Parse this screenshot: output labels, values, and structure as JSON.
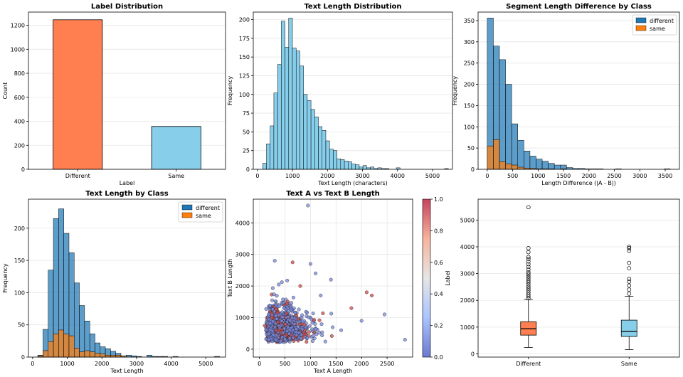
{
  "colors": {
    "orange_red": "#ff7f50",
    "sky": "#87ceeb",
    "blue": "#1f77b4",
    "orange": "#ff7f0e",
    "cmap_low": "#3b4cc0",
    "cmap_mid": "#dddddd",
    "cmap_high": "#b40426"
  },
  "chart_data": [
    {
      "id": "label-dist",
      "type": "bar",
      "title": "Label Distribution",
      "xlabel": "Label",
      "ylabel": "Count",
      "categories": [
        "Different",
        "Same"
      ],
      "values": [
        1246,
        357
      ],
      "bar_colors": [
        "#ff7f50",
        "#87ceeb"
      ],
      "ylim": [
        0,
        1310
      ],
      "yticks": [
        0,
        200,
        400,
        600,
        800,
        1000,
        1200
      ]
    },
    {
      "id": "text-length-dist",
      "type": "histogram",
      "title": "Text Length Distribution",
      "xlabel": "Text Length (characters)",
      "ylabel": "Frequency",
      "bin_start": 150,
      "bin_width": 106,
      "counts": [
        8,
        34,
        58,
        102,
        140,
        198,
        163,
        202,
        162,
        158,
        138,
        100,
        92,
        80,
        70,
        57,
        52,
        38,
        27,
        25,
        14,
        13,
        11,
        10,
        7,
        6,
        3,
        5,
        2,
        3,
        1,
        2,
        1,
        1,
        0,
        0,
        2,
        0,
        0,
        0,
        0,
        0,
        0,
        0,
        0,
        0,
        0,
        0,
        0,
        1
      ],
      "color": "#87ceeb",
      "xlim": [
        -120,
        5570
      ],
      "ylim": [
        0,
        210
      ],
      "xticks": [
        0,
        1000,
        2000,
        3000,
        4000,
        5000
      ],
      "yticks": [
        0,
        25,
        50,
        75,
        100,
        125,
        150,
        175,
        200
      ]
    },
    {
      "id": "segment-diff",
      "type": "histogram",
      "title": "Segment Length Difference by Class",
      "xlabel": "Length Difference (|A - B|)",
      "ylabel": "Frequency",
      "bin_start": 0,
      "bin_width": 120,
      "series": [
        {
          "name": "different",
          "color": "#1f77b4",
          "counts": [
            356,
            290,
            258,
            200,
            107,
            68,
            43,
            31,
            24,
            19,
            14,
            10,
            10,
            4,
            2,
            2,
            1,
            1,
            1,
            0,
            0,
            1,
            0,
            0,
            0,
            0,
            0,
            0,
            0,
            1
          ]
        },
        {
          "name": "same",
          "color": "#ff7f0e",
          "counts": [
            55,
            70,
            18,
            13,
            10,
            5,
            3,
            2,
            1,
            1,
            1,
            0,
            1
          ]
        }
      ],
      "legend": "top-right",
      "xlim": [
        -180,
        3780
      ],
      "ylim": [
        0,
        370
      ],
      "xticks": [
        0,
        500,
        1000,
        1500,
        2000,
        2500,
        3000,
        3500
      ],
      "yticks": [
        0,
        50,
        100,
        150,
        200,
        250,
        300,
        350
      ]
    },
    {
      "id": "text-length-by-class",
      "type": "histogram",
      "title": "Text Length by Class",
      "xlabel": "Text Length",
      "ylabel": "Frequency",
      "bin_start": 150,
      "bin_width": 150,
      "series": [
        {
          "name": "different",
          "color": "#1f77b4",
          "counts": [
            3,
            43,
            135,
            215,
            230,
            192,
            162,
            115,
            80,
            56,
            36,
            22,
            16,
            13,
            9,
            6,
            2,
            3,
            2,
            1,
            0,
            3,
            1,
            1,
            1,
            0,
            0,
            0,
            0,
            0,
            0,
            0,
            0,
            0,
            1
          ]
        },
        {
          "name": "same",
          "color": "#ff7f0e",
          "counts": [
            2,
            10,
            24,
            36,
            42,
            36,
            33,
            14,
            8,
            10,
            8,
            6,
            5,
            3,
            3,
            3,
            2,
            0,
            0,
            0,
            0,
            0,
            0,
            0,
            0,
            0,
            1
          ]
        }
      ],
      "legend": "top-right",
      "xlim": [
        -120,
        5570
      ],
      "ylim": [
        0,
        245
      ],
      "xticks": [
        0,
        1000,
        2000,
        3000,
        4000,
        5000
      ],
      "yticks": [
        0,
        50,
        100,
        150,
        200
      ]
    },
    {
      "id": "scatter-ab",
      "type": "scatter",
      "title": "Text A vs Text B Length",
      "xlabel": "Text A Length",
      "ylabel": "Text B Length",
      "xlim": [
        -120,
        3000
      ],
      "ylim": [
        -250,
        4750
      ],
      "xticks": [
        0,
        500,
        1000,
        1500,
        2000,
        2500
      ],
      "yticks": [
        0,
        1000,
        2000,
        3000,
        4000
      ],
      "cmap": "coolwarm",
      "colorbar_label": "Label",
      "colorbar_ticks": [
        0.0,
        0.2,
        0.4,
        0.6,
        0.8,
        1.0
      ],
      "colorbar_tick_labels": [
        "0.0",
        "0.2",
        "0.4",
        "0.6",
        "0.8",
        "1.0"
      ],
      "outliers": [
        {
          "x": 950,
          "y": 4550,
          "label": 0
        },
        {
          "x": 300,
          "y": 2800,
          "label": 0
        },
        {
          "x": 650,
          "y": 2750,
          "label": 1
        },
        {
          "x": 1000,
          "y": 2700,
          "label": 0
        },
        {
          "x": 1100,
          "y": 2400,
          "label": 0
        },
        {
          "x": 1400,
          "y": 2200,
          "label": 0
        },
        {
          "x": 2100,
          "y": 1800,
          "label": 1
        },
        {
          "x": 2200,
          "y": 1700,
          "label": 1
        },
        {
          "x": 2450,
          "y": 1100,
          "label": 0
        },
        {
          "x": 2850,
          "y": 300,
          "label": 0
        },
        {
          "x": 1800,
          "y": 1300,
          "label": 1
        },
        {
          "x": 1200,
          "y": 1700,
          "label": 0
        },
        {
          "x": 800,
          "y": 2000,
          "label": 1
        },
        {
          "x": 1600,
          "y": 600,
          "label": 0
        },
        {
          "x": 2000,
          "y": 900,
          "label": 0
        }
      ],
      "cluster": {
        "count": 1200,
        "x_center": 450,
        "y_center": 700,
        "spread": "lognormal"
      }
    },
    {
      "id": "boxplot",
      "type": "box",
      "title": "",
      "categories": [
        "Different",
        "Same"
      ],
      "box_colors": [
        "#ff7f50",
        "#87ceeb"
      ],
      "boxes": [
        {
          "whislo": 240,
          "q1": 700,
          "med": 940,
          "q3": 1200,
          "whishi": 2030,
          "fliers": [
            2080,
            2150,
            2220,
            2300,
            2380,
            2450,
            2520,
            2600,
            2680,
            2750,
            2830,
            2900,
            2980,
            3050,
            3150,
            3250,
            3350,
            3450,
            3550,
            3620,
            3800,
            3950,
            5480
          ]
        },
        {
          "whislo": 160,
          "q1": 650,
          "med": 840,
          "q3": 1260,
          "whishi": 2150,
          "fliers": [
            2250,
            2400,
            2550,
            2700,
            2800,
            3200,
            3400,
            3850,
            3950,
            4000
          ]
        }
      ],
      "ylim": [
        -120,
        5780
      ],
      "yticks": [
        0,
        1000,
        2000,
        3000,
        4000,
        5000
      ]
    }
  ]
}
